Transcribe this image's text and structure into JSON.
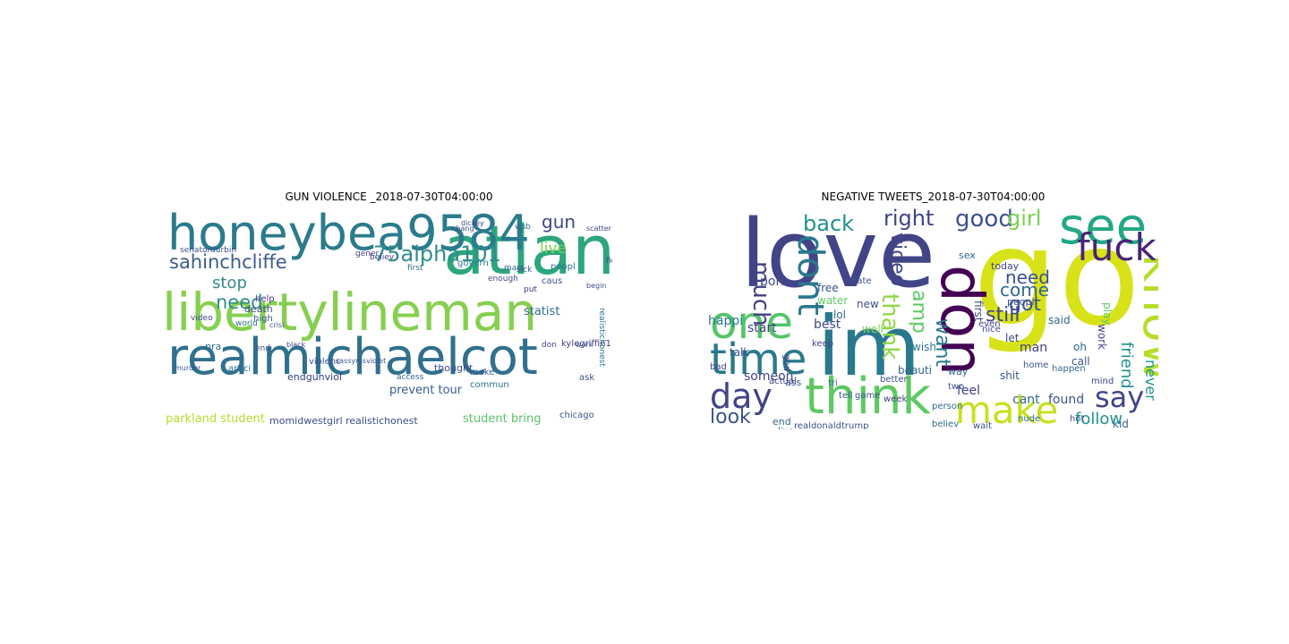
{
  "panels": [
    {
      "title": "GUN VIOLENCE _2018-07-30T04:00:00",
      "words": [
        {
          "t": "atlanta",
          "c": "#2ca67e"
        },
        {
          "t": "libertylineman",
          "c": "#87cf4f"
        },
        {
          "t": "realmichaelcot",
          "c": "#30708e"
        },
        {
          "t": "honeybea9584",
          "c": "#2b7b8d"
        },
        {
          "t": "sahinchcliffe",
          "c": "#3c5c8b"
        },
        {
          "t": "75alpha101",
          "c": "#2e8d8b"
        },
        {
          "t": "need",
          "c": "#2e8b8a"
        },
        {
          "t": "stop",
          "c": "#358b8c"
        },
        {
          "t": "gun",
          "c": "#404687"
        },
        {
          "t": "live",
          "c": "#7ad251"
        },
        {
          "t": "parkland student",
          "c": "#b5dd2b"
        },
        {
          "t": "student bring",
          "c": "#5bc36c"
        },
        {
          "t": "momidwestgirl realistichonest",
          "c": "#3d4d8a"
        },
        {
          "t": "prevent tour",
          "c": "#3b5b8c"
        },
        {
          "t": "endgunviol",
          "c": "#2e3e7d"
        },
        {
          "t": "death",
          "c": "#3d4e8a"
        },
        {
          "t": "help",
          "c": "#4c3b7b"
        },
        {
          "t": "high",
          "c": "#38598c"
        },
        {
          "t": "world",
          "c": "#2b778e"
        },
        {
          "t": "violenc",
          "c": "#3a538b"
        },
        {
          "t": "nra",
          "c": "#2f6c8e"
        },
        {
          "t": "artici",
          "c": "#2d708e"
        },
        {
          "t": "thought",
          "c": "#3f488a"
        },
        {
          "t": "make",
          "c": "#35608d"
        },
        {
          "t": "commun",
          "c": "#2a768e"
        },
        {
          "t": "chicago",
          "c": "#3b528b"
        },
        {
          "t": "statist",
          "c": "#2f6b8e"
        },
        {
          "t": "ask",
          "c": "#3b528b"
        },
        {
          "t": "peopl",
          "c": "#2c728e"
        },
        {
          "t": "caus",
          "c": "#3a548c"
        },
        {
          "t": "put",
          "c": "#46337e"
        },
        {
          "t": "mani",
          "c": "#33638d"
        },
        {
          "t": "enough",
          "c": "#3e4a89"
        },
        {
          "t": "govern",
          "c": "#2a7b8e"
        },
        {
          "t": "first",
          "c": "#2c738e"
        },
        {
          "t": "believ",
          "c": "#433d84"
        },
        {
          "t": "gener",
          "c": "#3f4788"
        },
        {
          "t": "wsb",
          "c": "#2f6b8e"
        },
        {
          "t": "fight",
          "c": "#3d4d8a"
        },
        {
          "t": "sick",
          "c": "#38598c"
        },
        {
          "t": "senatordurbin",
          "c": "#3b518b"
        },
        {
          "t": "kylegriffin1",
          "c": "#433e85"
        },
        {
          "t": "sassymsviolet",
          "c": "#38588c"
        },
        {
          "t": "video",
          "c": "#3e4989"
        },
        {
          "t": "end",
          "c": "#3e4c8a"
        },
        {
          "t": "work",
          "c": "#3a548c"
        },
        {
          "t": "black",
          "c": "#414287"
        },
        {
          "t": "crisi",
          "c": "#3b528b"
        },
        {
          "t": "realistichonest",
          "c": "#2d708e"
        },
        {
          "t": "don",
          "c": "#404688"
        },
        {
          "t": "access",
          "c": "#31688e"
        },
        {
          "t": "chang",
          "c": "#3c4f8a"
        },
        {
          "t": "dickey",
          "c": "#3f4788"
        },
        {
          "t": "murder",
          "c": "#3a548c"
        },
        {
          "t": "begin",
          "c": "#3d4e8a"
        },
        {
          "t": "scatter",
          "c": "#3e4989"
        }
      ]
    },
    {
      "title": "NEGATIVE TWEETS_2018-07-30T04:00:00",
      "words": [
        {
          "t": "love",
          "c": "#414487"
        },
        {
          "t": "im",
          "c": "#2a788e"
        },
        {
          "t": "go",
          "c": "#d8e219"
        },
        {
          "t": "see",
          "c": "#22a884"
        },
        {
          "t": "think",
          "c": "#5ec962"
        },
        {
          "t": "one",
          "c": "#54c568"
        },
        {
          "t": "time",
          "c": "#2a788e"
        },
        {
          "t": "day",
          "c": "#414487"
        },
        {
          "t": "make",
          "c": "#c8e020"
        },
        {
          "t": "dont",
          "c": "#2a788e"
        },
        {
          "t": "don",
          "c": "#440154"
        },
        {
          "t": "know",
          "c": "#b5de2b"
        },
        {
          "t": "fuck",
          "c": "#482475"
        },
        {
          "t": "say",
          "c": "#414487"
        },
        {
          "t": "look",
          "c": "#3b528b"
        },
        {
          "t": "follow",
          "c": "#21918c"
        },
        {
          "t": "much",
          "c": "#433e85"
        },
        {
          "t": "back",
          "c": "#21918c"
        },
        {
          "t": "right",
          "c": "#414487"
        },
        {
          "t": "good",
          "c": "#3b528b"
        },
        {
          "t": "girl",
          "c": "#7ad151"
        },
        {
          "t": "thank",
          "c": "#8fd744"
        },
        {
          "t": "amp",
          "c": "#5ec962"
        },
        {
          "t": "video",
          "c": "#414487"
        },
        {
          "t": "want",
          "c": "#2a788e"
        },
        {
          "t": "come",
          "c": "#31688e"
        },
        {
          "t": "need",
          "c": "#3b528b"
        },
        {
          "t": "got",
          "c": "#3b528b"
        },
        {
          "t": "still",
          "c": "#414487"
        },
        {
          "t": "never",
          "c": "#21918c"
        },
        {
          "t": "friend",
          "c": "#21918c"
        },
        {
          "t": "porn",
          "c": "#3e4989"
        },
        {
          "t": "free",
          "c": "#3b528b"
        },
        {
          "t": "water",
          "c": "#5ec962"
        },
        {
          "t": "start",
          "c": "#433e85"
        },
        {
          "t": "best",
          "c": "#3e4989"
        },
        {
          "t": "happi",
          "c": "#2a788e"
        },
        {
          "t": "talk",
          "c": "#3b528b"
        },
        {
          "t": "someon",
          "c": "#414487"
        },
        {
          "t": "lol",
          "c": "#31688e"
        },
        {
          "t": "well",
          "c": "#7ad151"
        },
        {
          "t": "wish",
          "c": "#2a788e"
        },
        {
          "t": "new",
          "c": "#3b528b"
        },
        {
          "t": "end",
          "c": "#31688e"
        },
        {
          "t": "realdonaldtrump",
          "c": "#3b528b"
        },
        {
          "t": "feel",
          "c": "#433e85"
        },
        {
          "t": "cant",
          "c": "#31688e"
        },
        {
          "t": "found",
          "c": "#3b528b"
        },
        {
          "t": "shit",
          "c": "#3b528b"
        },
        {
          "t": "man",
          "c": "#433e85"
        },
        {
          "t": "oh",
          "c": "#31688e"
        },
        {
          "t": "call",
          "c": "#3b528b"
        },
        {
          "t": "let",
          "c": "#414487"
        },
        {
          "t": "first",
          "c": "#3e4989"
        },
        {
          "t": "today",
          "c": "#414487"
        },
        {
          "t": "sex",
          "c": "#31688e"
        },
        {
          "t": "peopl",
          "c": "#3b528b"
        },
        {
          "t": "said",
          "c": "#31688e"
        },
        {
          "t": "work",
          "c": "#414487"
        },
        {
          "t": "kid",
          "c": "#31688e"
        },
        {
          "t": "play",
          "c": "#5ec962"
        },
        {
          "t": "tell",
          "c": "#3b528b"
        },
        {
          "t": "week",
          "c": "#433e85"
        },
        {
          "t": "believ",
          "c": "#31688e"
        },
        {
          "t": "wait",
          "c": "#3b528b"
        },
        {
          "t": "keep",
          "c": "#414487"
        },
        {
          "t": "live",
          "c": "#31688e"
        },
        {
          "t": "hate",
          "c": "#3b528b"
        },
        {
          "t": "beauti",
          "c": "#31688e"
        },
        {
          "t": "god",
          "c": "#414487"
        },
        {
          "t": "ass",
          "c": "#3b528b"
        },
        {
          "t": "tri",
          "c": "#31688e"
        },
        {
          "t": "even",
          "c": "#433e85"
        },
        {
          "t": "better",
          "c": "#3b528b"
        },
        {
          "t": "person",
          "c": "#31688e"
        },
        {
          "t": "game",
          "c": "#3b528b"
        },
        {
          "t": "actual",
          "c": "#414487"
        },
        {
          "t": "happen",
          "c": "#31688e"
        },
        {
          "t": "home",
          "c": "#3b528b"
        },
        {
          "t": "nice",
          "c": "#3e4989"
        },
        {
          "t": "way",
          "c": "#31688e"
        },
        {
          "t": "two",
          "c": "#3b528b"
        },
        {
          "t": "bad",
          "c": "#414487"
        },
        {
          "t": "nude",
          "c": "#31688e"
        },
        {
          "t": "hot",
          "c": "#3b528b"
        },
        {
          "t": "mind",
          "c": "#414487"
        }
      ]
    }
  ]
}
